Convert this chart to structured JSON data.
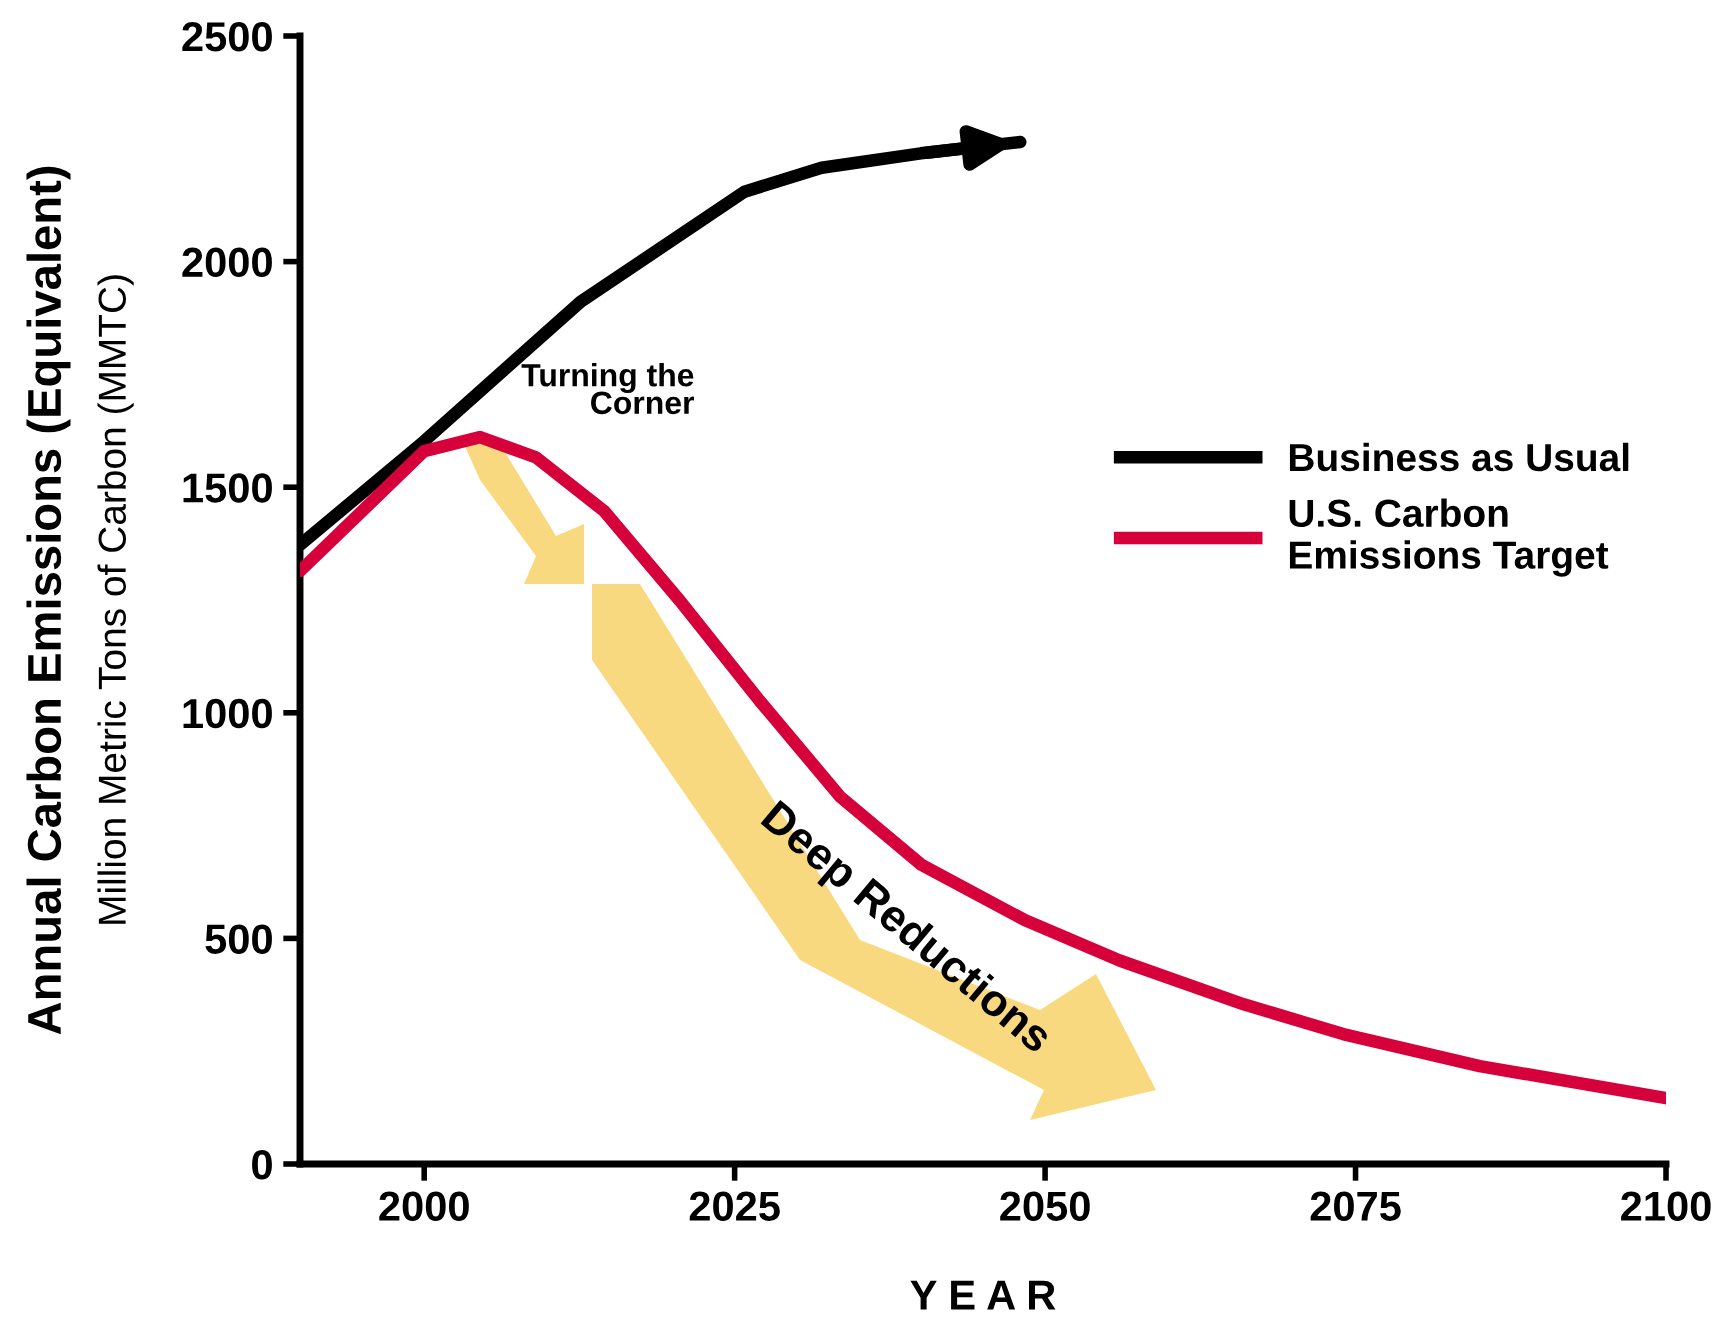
{
  "chart_data": {
    "type": "line",
    "xlabel": "Y E A R",
    "ylabel": "Annual Carbon Emissions (Equivalent)",
    "xlim": [
      1990,
      2100
    ],
    "ylim": [
      0,
      2500
    ],
    "xticks": [
      2000,
      2025,
      2050,
      2075,
      2100
    ],
    "yticks": [
      0,
      500,
      1000,
      1500,
      2000,
      2500
    ],
    "grid": false,
    "legend": "right",
    "marker": "none",
    "line_style": "solid",
    "series": [
      {
        "name": "Business as Usual",
        "color": "#000000",
        "x": [
          1990,
          2000,
          2012.6,
          2025.8,
          2032,
          2040,
          2048
        ],
        "values": [
          1372,
          1602,
          1911,
          2155,
          2208,
          2240,
          2265
        ]
      },
      {
        "name": "U.S. Carbon\nEmissions Target",
        "color": "#d6003b",
        "x": [
          1990,
          2000,
          2004.5,
          2009,
          2014.5,
          2020.6,
          2027,
          2033.5,
          2040,
          2048.4,
          2056,
          2066,
          2074,
          2085,
          2100
        ],
        "values": [
          1314,
          1580,
          1611,
          1566,
          1447,
          1248,
          1027,
          814,
          664,
          540,
          451,
          354,
          288,
          217,
          146
        ]
      }
    ],
    "annotations": [
      "Million Metric Tons of Carbon (MMTC)",
      {
        "text": "Turning the\nCorner",
        "x": 2004.5,
        "y": 1611
      },
      "Deep Reductions"
    ]
  }
}
